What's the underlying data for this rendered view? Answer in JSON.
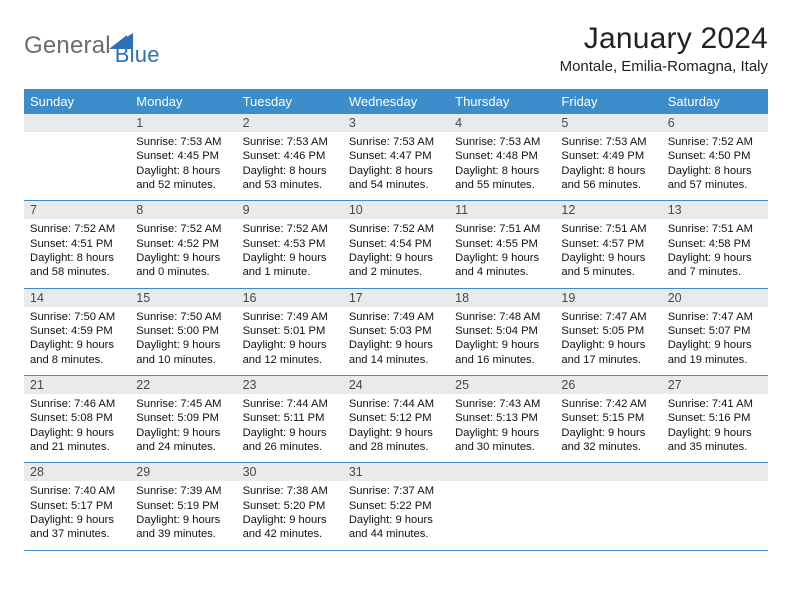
{
  "brand": {
    "part1": "General",
    "part2": "Blue"
  },
  "header": {
    "title": "January 2024",
    "location": "Montale, Emilia-Romagna, Italy"
  },
  "colors": {
    "header_blue": "#3c8dc9",
    "cell_header_bg": "#e9eaeb",
    "rule": "#3c8dc9",
    "logo_gray": "#6d6d6d",
    "logo_blue": "#2a72b5"
  },
  "daysOfWeek": [
    "Sunday",
    "Monday",
    "Tuesday",
    "Wednesday",
    "Thursday",
    "Friday",
    "Saturday"
  ],
  "weeks": [
    [
      {
        "n": "",
        "empty": true
      },
      {
        "n": "1",
        "sr": "Sunrise: 7:53 AM",
        "ss": "Sunset: 4:45 PM",
        "d1": "Daylight: 8 hours",
        "d2": "and 52 minutes."
      },
      {
        "n": "2",
        "sr": "Sunrise: 7:53 AM",
        "ss": "Sunset: 4:46 PM",
        "d1": "Daylight: 8 hours",
        "d2": "and 53 minutes."
      },
      {
        "n": "3",
        "sr": "Sunrise: 7:53 AM",
        "ss": "Sunset: 4:47 PM",
        "d1": "Daylight: 8 hours",
        "d2": "and 54 minutes."
      },
      {
        "n": "4",
        "sr": "Sunrise: 7:53 AM",
        "ss": "Sunset: 4:48 PM",
        "d1": "Daylight: 8 hours",
        "d2": "and 55 minutes."
      },
      {
        "n": "5",
        "sr": "Sunrise: 7:53 AM",
        "ss": "Sunset: 4:49 PM",
        "d1": "Daylight: 8 hours",
        "d2": "and 56 minutes."
      },
      {
        "n": "6",
        "sr": "Sunrise: 7:52 AM",
        "ss": "Sunset: 4:50 PM",
        "d1": "Daylight: 8 hours",
        "d2": "and 57 minutes."
      }
    ],
    [
      {
        "n": "7",
        "sr": "Sunrise: 7:52 AM",
        "ss": "Sunset: 4:51 PM",
        "d1": "Daylight: 8 hours",
        "d2": "and 58 minutes."
      },
      {
        "n": "8",
        "sr": "Sunrise: 7:52 AM",
        "ss": "Sunset: 4:52 PM",
        "d1": "Daylight: 9 hours",
        "d2": "and 0 minutes."
      },
      {
        "n": "9",
        "sr": "Sunrise: 7:52 AM",
        "ss": "Sunset: 4:53 PM",
        "d1": "Daylight: 9 hours",
        "d2": "and 1 minute."
      },
      {
        "n": "10",
        "sr": "Sunrise: 7:52 AM",
        "ss": "Sunset: 4:54 PM",
        "d1": "Daylight: 9 hours",
        "d2": "and 2 minutes."
      },
      {
        "n": "11",
        "sr": "Sunrise: 7:51 AM",
        "ss": "Sunset: 4:55 PM",
        "d1": "Daylight: 9 hours",
        "d2": "and 4 minutes."
      },
      {
        "n": "12",
        "sr": "Sunrise: 7:51 AM",
        "ss": "Sunset: 4:57 PM",
        "d1": "Daylight: 9 hours",
        "d2": "and 5 minutes."
      },
      {
        "n": "13",
        "sr": "Sunrise: 7:51 AM",
        "ss": "Sunset: 4:58 PM",
        "d1": "Daylight: 9 hours",
        "d2": "and 7 minutes."
      }
    ],
    [
      {
        "n": "14",
        "sr": "Sunrise: 7:50 AM",
        "ss": "Sunset: 4:59 PM",
        "d1": "Daylight: 9 hours",
        "d2": "and 8 minutes."
      },
      {
        "n": "15",
        "sr": "Sunrise: 7:50 AM",
        "ss": "Sunset: 5:00 PM",
        "d1": "Daylight: 9 hours",
        "d2": "and 10 minutes."
      },
      {
        "n": "16",
        "sr": "Sunrise: 7:49 AM",
        "ss": "Sunset: 5:01 PM",
        "d1": "Daylight: 9 hours",
        "d2": "and 12 minutes."
      },
      {
        "n": "17",
        "sr": "Sunrise: 7:49 AM",
        "ss": "Sunset: 5:03 PM",
        "d1": "Daylight: 9 hours",
        "d2": "and 14 minutes."
      },
      {
        "n": "18",
        "sr": "Sunrise: 7:48 AM",
        "ss": "Sunset: 5:04 PM",
        "d1": "Daylight: 9 hours",
        "d2": "and 16 minutes."
      },
      {
        "n": "19",
        "sr": "Sunrise: 7:47 AM",
        "ss": "Sunset: 5:05 PM",
        "d1": "Daylight: 9 hours",
        "d2": "and 17 minutes."
      },
      {
        "n": "20",
        "sr": "Sunrise: 7:47 AM",
        "ss": "Sunset: 5:07 PM",
        "d1": "Daylight: 9 hours",
        "d2": "and 19 minutes."
      }
    ],
    [
      {
        "n": "21",
        "sr": "Sunrise: 7:46 AM",
        "ss": "Sunset: 5:08 PM",
        "d1": "Daylight: 9 hours",
        "d2": "and 21 minutes."
      },
      {
        "n": "22",
        "sr": "Sunrise: 7:45 AM",
        "ss": "Sunset: 5:09 PM",
        "d1": "Daylight: 9 hours",
        "d2": "and 24 minutes."
      },
      {
        "n": "23",
        "sr": "Sunrise: 7:44 AM",
        "ss": "Sunset: 5:11 PM",
        "d1": "Daylight: 9 hours",
        "d2": "and 26 minutes."
      },
      {
        "n": "24",
        "sr": "Sunrise: 7:44 AM",
        "ss": "Sunset: 5:12 PM",
        "d1": "Daylight: 9 hours",
        "d2": "and 28 minutes."
      },
      {
        "n": "25",
        "sr": "Sunrise: 7:43 AM",
        "ss": "Sunset: 5:13 PM",
        "d1": "Daylight: 9 hours",
        "d2": "and 30 minutes."
      },
      {
        "n": "26",
        "sr": "Sunrise: 7:42 AM",
        "ss": "Sunset: 5:15 PM",
        "d1": "Daylight: 9 hours",
        "d2": "and 32 minutes."
      },
      {
        "n": "27",
        "sr": "Sunrise: 7:41 AM",
        "ss": "Sunset: 5:16 PM",
        "d1": "Daylight: 9 hours",
        "d2": "and 35 minutes."
      }
    ],
    [
      {
        "n": "28",
        "sr": "Sunrise: 7:40 AM",
        "ss": "Sunset: 5:17 PM",
        "d1": "Daylight: 9 hours",
        "d2": "and 37 minutes."
      },
      {
        "n": "29",
        "sr": "Sunrise: 7:39 AM",
        "ss": "Sunset: 5:19 PM",
        "d1": "Daylight: 9 hours",
        "d2": "and 39 minutes."
      },
      {
        "n": "30",
        "sr": "Sunrise: 7:38 AM",
        "ss": "Sunset: 5:20 PM",
        "d1": "Daylight: 9 hours",
        "d2": "and 42 minutes."
      },
      {
        "n": "31",
        "sr": "Sunrise: 7:37 AM",
        "ss": "Sunset: 5:22 PM",
        "d1": "Daylight: 9 hours",
        "d2": "and 44 minutes."
      },
      {
        "n": "",
        "empty": true
      },
      {
        "n": "",
        "empty": true
      },
      {
        "n": "",
        "empty": true
      }
    ]
  ]
}
